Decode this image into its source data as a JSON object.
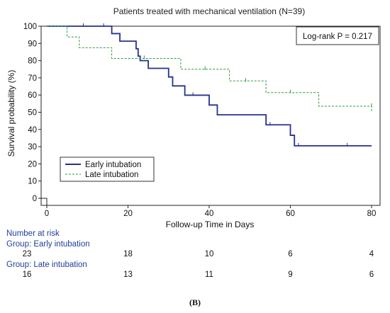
{
  "chart_data": {
    "type": "line",
    "subtype": "kaplan-meier",
    "title": "Patients treated with mechanical ventilation (N=39)",
    "xlabel": "Follow-up Time in Days",
    "ylabel": "Survival probability (%)",
    "xlim": [
      0,
      80
    ],
    "ylim": [
      0,
      100
    ],
    "xticks": [
      "0",
      "20",
      "40",
      "60",
      "80"
    ],
    "yticks": [
      "0",
      "10",
      "20",
      "30",
      "40",
      "50",
      "60",
      "70",
      "80",
      "90",
      "100"
    ],
    "grid": false,
    "legend_position": "bottom-left",
    "annotation": "Log-rank P = 0.217",
    "series": [
      {
        "name": "Early intubation",
        "color": "#27318f",
        "style": "solid",
        "steps": [
          [
            0,
            100
          ],
          [
            16,
            95.7
          ],
          [
            18,
            91.3
          ],
          [
            22,
            86.9
          ],
          [
            22.5,
            82.6
          ],
          [
            23,
            80
          ],
          [
            25,
            75.5
          ],
          [
            30,
            70.5
          ],
          [
            31,
            65.3
          ],
          [
            34,
            59.9
          ],
          [
            40,
            54.2
          ],
          [
            42,
            48.5
          ],
          [
            54,
            42.7
          ],
          [
            60,
            36.6
          ],
          [
            61,
            30.5
          ],
          [
            80,
            30.5
          ]
        ],
        "censored": [
          [
            9,
            100
          ],
          [
            14,
            100
          ],
          [
            36,
            59.9
          ],
          [
            55,
            42.7
          ],
          [
            62,
            30.5
          ],
          [
            74,
            30.5
          ]
        ]
      },
      {
        "name": "Late intubation",
        "color": "#2e9a3a",
        "style": "dashed",
        "steps": [
          [
            0,
            100
          ],
          [
            5,
            93.8
          ],
          [
            8,
            87.5
          ],
          [
            16,
            81.3
          ],
          [
            33,
            75
          ],
          [
            45,
            68.2
          ],
          [
            54,
            61.4
          ],
          [
            67,
            53.5
          ],
          [
            80,
            50
          ]
        ],
        "censored": [
          [
            24,
            81.3
          ],
          [
            39,
            75
          ],
          [
            49,
            68.2
          ],
          [
            60,
            61.4
          ],
          [
            80,
            53.5
          ]
        ]
      }
    ],
    "risk_table": {
      "title": "Number at risk",
      "groups": [
        {
          "label": "Group: Early intubation",
          "counts": [
            "23",
            "18",
            "10",
            "6",
            "4"
          ]
        },
        {
          "label": "Group: Late intubation",
          "counts": [
            "16",
            "13",
            "11",
            "9",
            "6"
          ]
        }
      ],
      "times": [
        0,
        20,
        40,
        60,
        80
      ]
    },
    "panel_label": "(B)"
  }
}
